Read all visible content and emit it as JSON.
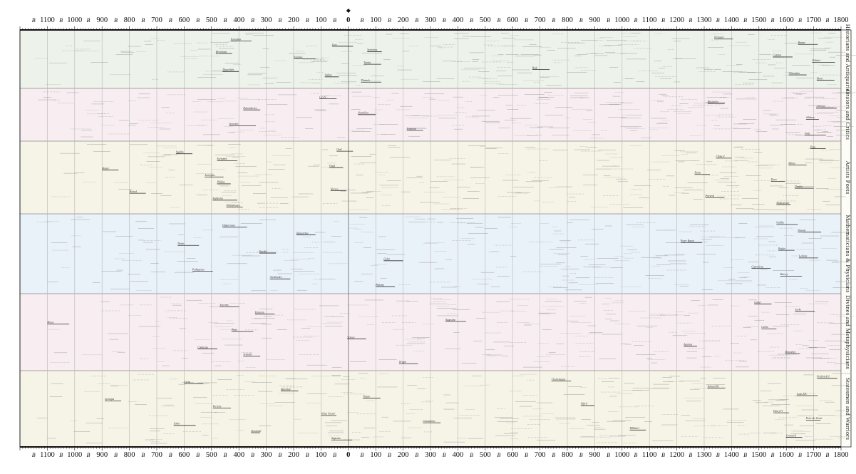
{
  "chart_data": {
    "type": "timeline",
    "x_axis": {
      "range": [
        -1200,
        1800
      ],
      "ticks": [
        {
          "label": "1100",
          "value": -1100
        },
        {
          "label": "1000",
          "value": -1000
        },
        {
          "label": "900",
          "value": -900
        },
        {
          "label": "800",
          "value": -800
        },
        {
          "label": "700",
          "value": -700
        },
        {
          "label": "600",
          "value": -600
        },
        {
          "label": "500",
          "value": -500
        },
        {
          "label": "400",
          "value": -400
        },
        {
          "label": "300",
          "value": -300
        },
        {
          "label": "200",
          "value": -200
        },
        {
          "label": "100",
          "value": -100
        },
        {
          "label": "0",
          "value": 0
        },
        {
          "label": "100",
          "value": 100
        },
        {
          "label": "200",
          "value": 200
        },
        {
          "label": "300",
          "value": 300
        },
        {
          "label": "400",
          "value": 400
        },
        {
          "label": "500",
          "value": 500
        },
        {
          "label": "600",
          "value": 600
        },
        {
          "label": "700",
          "value": 700
        },
        {
          "label": "800",
          "value": 800
        },
        {
          "label": "900",
          "value": 900
        },
        {
          "label": "1000",
          "value": 1000
        },
        {
          "label": "1100",
          "value": 1100
        },
        {
          "label": "1200",
          "value": 1200
        },
        {
          "label": "1300",
          "value": 1300
        },
        {
          "label": "1400",
          "value": 1400
        },
        {
          "label": "1500",
          "value": 1500
        },
        {
          "label": "1600",
          "value": 1600
        },
        {
          "label": "1700",
          "value": 1700
        },
        {
          "label": "1800",
          "value": 1800
        }
      ],
      "era_mark": "B"
    },
    "bands": [
      {
        "label": "Historians and Antiquaries",
        "color": "#edf3ea"
      },
      {
        "label": "Orators and Critics",
        "color": "#f8eef1"
      },
      {
        "label": "Artists Poets",
        "color": "#f6f4e6"
      },
      {
        "label": "Mathematicians & Physicians",
        "color": "#e9f1f9"
      },
      {
        "label": "Divines and Metaphysicians",
        "color": "#f8eef1"
      },
      {
        "label": "Statesmen and Warriors",
        "color": "#f6f4e6"
      }
    ],
    "lifespans": [
      {
        "band": 0,
        "name": "Herodotus",
        "start": -484,
        "end": -425
      },
      {
        "band": 0,
        "name": "Thucydides",
        "start": -460,
        "end": -400
      },
      {
        "band": 0,
        "name": "Xenophon",
        "start": -430,
        "end": -354
      },
      {
        "band": 0,
        "name": "Polybius",
        "start": -200,
        "end": -118
      },
      {
        "band": 0,
        "name": "Sallust",
        "start": -86,
        "end": -35
      },
      {
        "band": 0,
        "name": "Livy",
        "start": -59,
        "end": 17
      },
      {
        "band": 0,
        "name": "Tacitus",
        "start": 56,
        "end": 120
      },
      {
        "band": 0,
        "name": "Plutarch",
        "start": 46,
        "end": 120
      },
      {
        "band": 0,
        "name": "Suetonius",
        "start": 69,
        "end": 122
      },
      {
        "band": 0,
        "name": "Bede",
        "start": 672,
        "end": 735
      },
      {
        "band": 0,
        "name": "Froissart",
        "start": 1337,
        "end": 1405
      },
      {
        "band": 0,
        "name": "Camden",
        "start": 1551,
        "end": 1623
      },
      {
        "band": 0,
        "name": "Clarendon",
        "start": 1609,
        "end": 1674
      },
      {
        "band": 0,
        "name": "Burnet",
        "start": 1643,
        "end": 1715
      },
      {
        "band": 0,
        "name": "Voltaire",
        "start": 1694,
        "end": 1778
      },
      {
        "band": 0,
        "name": "Hume",
        "start": 1711,
        "end": 1776
      },
      {
        "band": 1,
        "name": "Demosthenes",
        "start": -384,
        "end": -322
      },
      {
        "band": 1,
        "name": "Isocrates",
        "start": -436,
        "end": -338
      },
      {
        "band": 1,
        "name": "Cicero",
        "start": -106,
        "end": -43
      },
      {
        "band": 1,
        "name": "Quintilian",
        "start": 35,
        "end": 100
      },
      {
        "band": 1,
        "name": "Longinus",
        "start": 213,
        "end": 273
      },
      {
        "band": 1,
        "name": "Boccaccio",
        "start": 1313,
        "end": 1375
      },
      {
        "band": 1,
        "name": "Addison",
        "start": 1672,
        "end": 1719
      },
      {
        "band": 1,
        "name": "Swift",
        "start": 1667,
        "end": 1745
      },
      {
        "band": 1,
        "name": "Johnson",
        "start": 1709,
        "end": 1784
      },
      {
        "band": 2,
        "name": "Homer",
        "start": -900,
        "end": -840
      },
      {
        "band": 2,
        "name": "Hesiod",
        "start": -800,
        "end": -740
      },
      {
        "band": 2,
        "name": "Sappho",
        "start": -630,
        "end": -570
      },
      {
        "band": 2,
        "name": "Aeschylus",
        "start": -525,
        "end": -456
      },
      {
        "band": 2,
        "name": "Sophocles",
        "start": -496,
        "end": -406
      },
      {
        "band": 2,
        "name": "Euripides",
        "start": -480,
        "end": -406
      },
      {
        "band": 2,
        "name": "Phidias",
        "start": -480,
        "end": -430
      },
      {
        "band": 2,
        "name": "Aristophanes",
        "start": -446,
        "end": -386
      },
      {
        "band": 2,
        "name": "Virgil",
        "start": -70,
        "end": -19
      },
      {
        "band": 2,
        "name": "Horace",
        "start": -65,
        "end": -8
      },
      {
        "band": 2,
        "name": "Ovid",
        "start": -43,
        "end": 17
      },
      {
        "band": 2,
        "name": "Dante",
        "start": 1265,
        "end": 1321
      },
      {
        "band": 2,
        "name": "Petrarch",
        "start": 1304,
        "end": 1374
      },
      {
        "band": 2,
        "name": "Chaucer",
        "start": 1343,
        "end": 1400
      },
      {
        "band": 2,
        "name": "Tasso",
        "start": 1544,
        "end": 1595
      },
      {
        "band": 2,
        "name": "Shakespeare",
        "start": 1564,
        "end": 1616
      },
      {
        "band": 2,
        "name": "Milton",
        "start": 1608,
        "end": 1674
      },
      {
        "band": 2,
        "name": "Dryden",
        "start": 1631,
        "end": 1700
      },
      {
        "band": 2,
        "name": "Pope",
        "start": 1688,
        "end": 1744
      },
      {
        "band": 3,
        "name": "Thales",
        "start": -624,
        "end": -546
      },
      {
        "band": 3,
        "name": "Pythagoras",
        "start": -570,
        "end": -495
      },
      {
        "band": 3,
        "name": "Hippocrates",
        "start": -460,
        "end": -370
      },
      {
        "band": 3,
        "name": "Euclid",
        "start": -325,
        "end": -265
      },
      {
        "band": 3,
        "name": "Archimedes",
        "start": -287,
        "end": -212
      },
      {
        "band": 3,
        "name": "Hipparchus",
        "start": -190,
        "end": -120
      },
      {
        "band": 3,
        "name": "Galen",
        "start": 129,
        "end": 200
      },
      {
        "band": 3,
        "name": "Ptolemy",
        "start": 100,
        "end": 170
      },
      {
        "band": 3,
        "name": "Roger Bacon",
        "start": 1214,
        "end": 1292
      },
      {
        "band": 3,
        "name": "Copernicus",
        "start": 1473,
        "end": 1543
      },
      {
        "band": 3,
        "name": "Galileo",
        "start": 1564,
        "end": 1642
      },
      {
        "band": 3,
        "name": "Kepler",
        "start": 1571,
        "end": 1630
      },
      {
        "band": 3,
        "name": "Harvey",
        "start": 1578,
        "end": 1657
      },
      {
        "band": 3,
        "name": "Newton",
        "start": 1642,
        "end": 1727
      },
      {
        "band": 3,
        "name": "Leibnitz",
        "start": 1646,
        "end": 1716
      },
      {
        "band": 4,
        "name": "Moses",
        "start": -1100,
        "end": -1020
      },
      {
        "band": 4,
        "name": "Confucius",
        "start": -551,
        "end": -479
      },
      {
        "band": 4,
        "name": "Socrates",
        "start": -470,
        "end": -399
      },
      {
        "band": 4,
        "name": "Plato",
        "start": -427,
        "end": -347
      },
      {
        "band": 4,
        "name": "Aristotle",
        "start": -384,
        "end": -322
      },
      {
        "band": 4,
        "name": "Epicurus",
        "start": -341,
        "end": -270
      },
      {
        "band": 4,
        "name": "Seneca",
        "start": -4,
        "end": 65
      },
      {
        "band": 4,
        "name": "Origen",
        "start": 185,
        "end": 254
      },
      {
        "band": 4,
        "name": "Augustine",
        "start": 354,
        "end": 430
      },
      {
        "band": 4,
        "name": "Aquinas",
        "start": 1225,
        "end": 1274
      },
      {
        "band": 4,
        "name": "Luther",
        "start": 1483,
        "end": 1546
      },
      {
        "band": 4,
        "name": "Calvin",
        "start": 1509,
        "end": 1564
      },
      {
        "band": 4,
        "name": "Descartes",
        "start": 1596,
        "end": 1650
      },
      {
        "band": 4,
        "name": "Locke",
        "start": 1632,
        "end": 1704
      },
      {
        "band": 5,
        "name": "Lycurgus",
        "start": -890,
        "end": -830
      },
      {
        "band": 5,
        "name": "Solon",
        "start": -638,
        "end": -558
      },
      {
        "band": 5,
        "name": "Cyrus",
        "start": -600,
        "end": -530
      },
      {
        "band": 5,
        "name": "Pericles",
        "start": -495,
        "end": -429
      },
      {
        "band": 5,
        "name": "Alexander",
        "start": -356,
        "end": -323
      },
      {
        "band": 5,
        "name": "Hannibal",
        "start": -247,
        "end": -183
      },
      {
        "band": 5,
        "name": "Julius Caesar",
        "start": -100,
        "end": -44
      },
      {
        "band": 5,
        "name": "Augustus",
        "start": -63,
        "end": 14
      },
      {
        "band": 5,
        "name": "Trajan",
        "start": 53,
        "end": 117
      },
      {
        "band": 5,
        "name": "Constantine",
        "start": 272,
        "end": 337
      },
      {
        "band": 5,
        "name": "Charlemagne",
        "start": 742,
        "end": 814
      },
      {
        "band": 5,
        "name": "Alfred",
        "start": 849,
        "end": 899
      },
      {
        "band": 5,
        "name": "William I",
        "start": 1028,
        "end": 1087
      },
      {
        "band": 5,
        "name": "Edward III",
        "start": 1312,
        "end": 1377
      },
      {
        "band": 5,
        "name": "Henry IV",
        "start": 1553,
        "end": 1610
      },
      {
        "band": 5,
        "name": "Cromwell",
        "start": 1599,
        "end": 1658
      },
      {
        "band": 5,
        "name": "Louis XIV",
        "start": 1638,
        "end": 1715
      },
      {
        "band": 5,
        "name": "Peter the Great",
        "start": 1672,
        "end": 1725
      },
      {
        "band": 5,
        "name": "Frederick II",
        "start": 1712,
        "end": 1786
      }
    ]
  }
}
